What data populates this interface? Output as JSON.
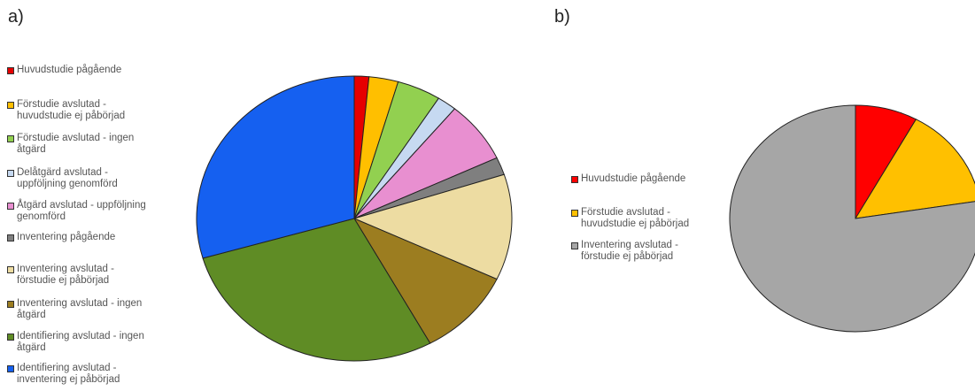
{
  "panels": [
    {
      "label": "a)"
    },
    {
      "label": "b)"
    }
  ],
  "chart_data": [
    {
      "type": "pie",
      "panel": "a)",
      "start": "top",
      "direction": "clockwise",
      "slices": [
        {
          "label": "Huvudstudie pågående",
          "value": 1.5,
          "color": "#e60000"
        },
        {
          "label": "Förstudie avslutad -\nhuvudstudie ej påbörjad",
          "value": 3.0,
          "color": "#ffbf00"
        },
        {
          "label": "Förstudie avslutad - ingen\nåtgärd",
          "value": 4.5,
          "color": "#92d050"
        },
        {
          "label": "Delåtgärd avslutad -\nuppföljning genomförd",
          "value": 2.0,
          "color": "#c6d9f1"
        },
        {
          "label": "Åtgärd avslutad - uppföljning\ngenomförd",
          "value": 7.0,
          "color": "#e88fd0"
        },
        {
          "label": "Inventering pågående",
          "value": 2.0,
          "color": "#7f7f7f"
        },
        {
          "label": "Inventering avslutad -\nförstudie ej påbörjad",
          "value": 12.0,
          "color": "#eddca2"
        },
        {
          "label": "Inventering avslutad - ingen\nåtgärd",
          "value": 10.0,
          "color": "#9c7d20"
        },
        {
          "label": "Identifiering avslutad - ingen\nåtgärd",
          "value": 28.5,
          "color": "#5f8c25"
        },
        {
          "label": "Identifiering avslutad -\ninventering ej påbörjad",
          "value": 29.5,
          "color": "#1560f0"
        }
      ]
    },
    {
      "type": "pie",
      "panel": "b)",
      "start": "top",
      "direction": "clockwise",
      "slices": [
        {
          "label": "Huvudstudie pågående",
          "value": 8.0,
          "color": "#ff0000"
        },
        {
          "label": "Förstudie avslutad -\nhuvudstudie ej påbörjad",
          "value": 14.5,
          "color": "#ffc000"
        },
        {
          "label": "Inventering avslutad -\nförstudie ej påbörjad",
          "value": 77.5,
          "color": "#a6a6a6"
        }
      ]
    }
  ]
}
